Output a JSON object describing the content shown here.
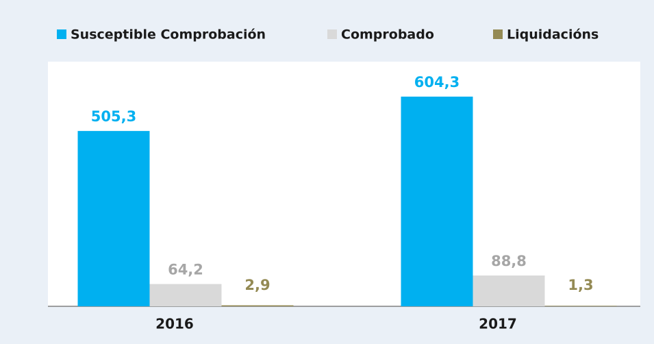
{
  "chart_data": {
    "type": "bar",
    "categories": [
      "2016",
      "2017"
    ],
    "series": [
      {
        "name": "Susceptible Comprobación",
        "color": "#00b0f0",
        "label_color": "#00b0f0",
        "values": [
          505.3,
          604.3
        ],
        "value_labels": [
          "505,3",
          "604,3"
        ]
      },
      {
        "name": "Comprobado",
        "color": "#d9d9d9",
        "label_color": "#a6a6a6",
        "values": [
          64.2,
          88.8
        ],
        "value_labels": [
          "64,2",
          "88,8"
        ]
      },
      {
        "name": "Liquidacións",
        "color": "#948a54",
        "label_color": "#948a54",
        "values": [
          2.9,
          1.3
        ],
        "value_labels": [
          "2,9",
          "1,3"
        ]
      }
    ],
    "legend": "top"
  }
}
